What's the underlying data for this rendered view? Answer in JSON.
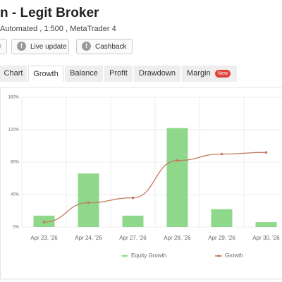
{
  "header": {
    "title": "n - Legit Broker",
    "subtitle": "Automated , 1:500 , MetaTrader 4"
  },
  "buttons": [
    "Live update",
    "Cashback"
  ],
  "tabs": [
    "Chart",
    "Growth",
    "Balance",
    "Profit",
    "Drawdown",
    "Margin"
  ],
  "badge": "New",
  "chart_data": {
    "type": "bar",
    "categories": [
      "Apr 23, '26",
      "Apr 24, '26",
      "Apr 27, '26",
      "Apr 28, '26",
      "Apr 29, '26",
      "Apr 30, '26"
    ],
    "series": [
      {
        "name": "Equity Growth",
        "type": "bar",
        "color": "#8fd88b",
        "values": [
          14,
          66,
          14,
          122,
          22,
          6
        ]
      },
      {
        "name": "Growth",
        "type": "line",
        "color": "#c27b5e",
        "values": [
          6,
          30,
          36,
          82,
          90,
          92
        ]
      }
    ],
    "ylim": [
      0,
      160
    ],
    "yticks": [
      {
        "value": 0,
        "label": "0%"
      },
      {
        "value": 40,
        "label": "40%"
      },
      {
        "value": 80,
        "label": "80%"
      },
      {
        "value": 120,
        "label": "120%"
      },
      {
        "value": 160,
        "label": "160%"
      }
    ],
    "grid": true
  }
}
